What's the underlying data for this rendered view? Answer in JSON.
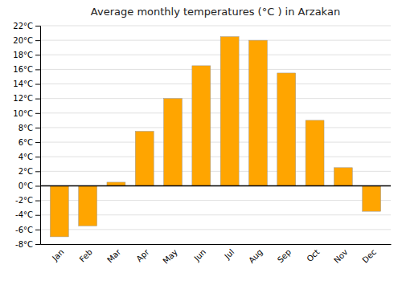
{
  "chart_data": {
    "type": "bar",
    "title": "Average monthly temperatures (°C ) in Arzakan",
    "categories": [
      "Jan",
      "Feb",
      "Mar",
      "Apr",
      "May",
      "Jun",
      "Jul",
      "Aug",
      "Sep",
      "Oct",
      "Nov",
      "Dec"
    ],
    "values": [
      -7.0,
      -5.5,
      0.5,
      7.5,
      12.0,
      16.5,
      20.5,
      20.0,
      15.5,
      9.0,
      2.5,
      -3.5
    ],
    "color": "#FFA500",
    "ylim": [
      -8,
      22
    ],
    "yticks": [
      {
        "value": -8,
        "label": "-8°C"
      },
      {
        "value": -6,
        "label": "-6°C"
      },
      {
        "value": -4,
        "label": "-4°C"
      },
      {
        "value": -2,
        "label": "-2°C"
      },
      {
        "value": 0,
        "label": "0°C"
      },
      {
        "value": 2,
        "label": "2°C"
      },
      {
        "value": 4,
        "label": "4°C"
      },
      {
        "value": 6,
        "label": "6°C"
      },
      {
        "value": 8,
        "label": "8°C"
      },
      {
        "value": 10,
        "label": "10°C"
      },
      {
        "value": 12,
        "label": "12°C"
      },
      {
        "value": 14,
        "label": "14°C"
      },
      {
        "value": 16,
        "label": "16°C"
      },
      {
        "value": 18,
        "label": "18°C"
      },
      {
        "value": 20,
        "label": "20°C"
      },
      {
        "value": 22,
        "label": "22°C"
      }
    ],
    "grid": true
  }
}
